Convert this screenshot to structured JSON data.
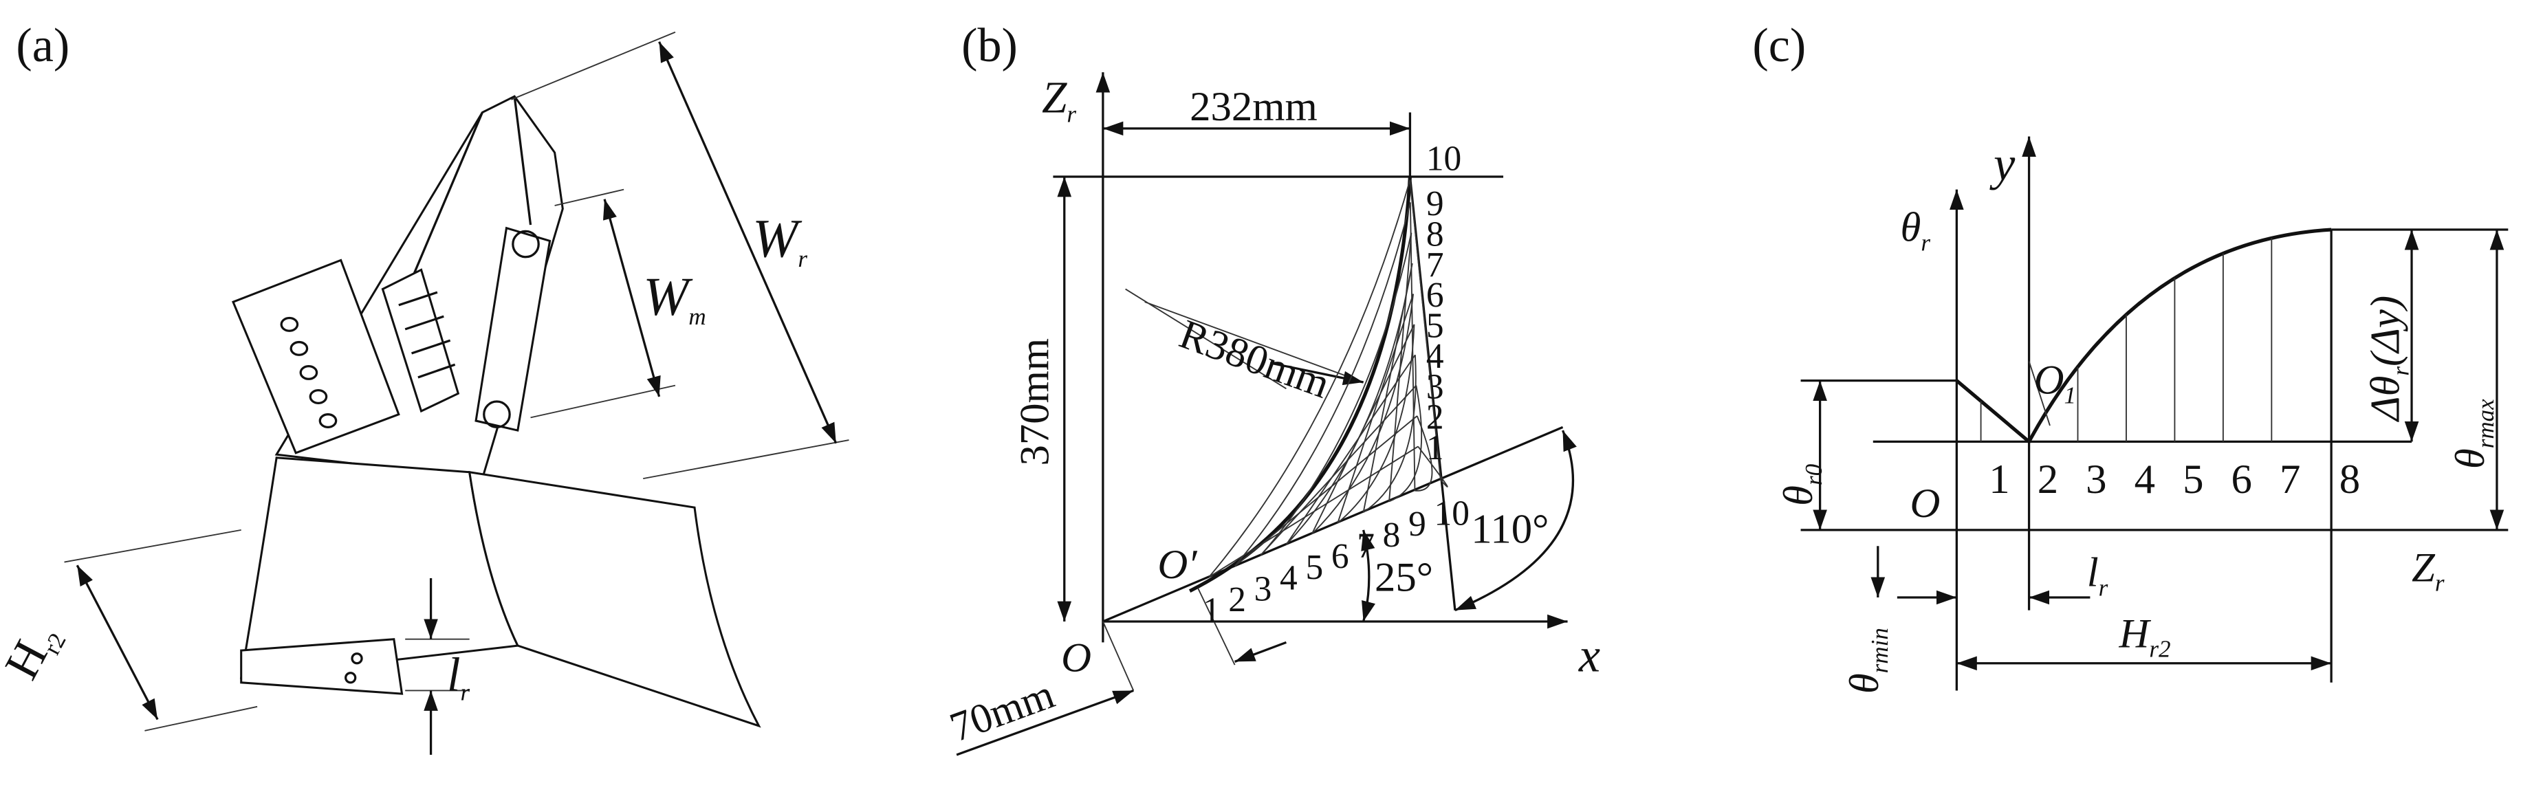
{
  "panels": [
    {
      "label": "(a)",
      "dim_wr": {
        "base": "W",
        "sub": "r"
      },
      "dim_wm": {
        "base": "W",
        "sub": "m"
      },
      "dim_hr2": {
        "base": "H",
        "sub": "r2"
      },
      "dim_lr": {
        "base": "l",
        "sub": "r"
      }
    },
    {
      "label": "(b)",
      "axis_z": {
        "base": "Z",
        "sub": "r"
      },
      "axis_x": "x",
      "origin": "O",
      "origin_prime": "O′",
      "width": "232mm",
      "height": "370mm",
      "radius": "R380mm",
      "offset": "70mm",
      "angle_large": "110°",
      "angle_small": "25°",
      "curve_points": [
        "1",
        "2",
        "3",
        "4",
        "5",
        "6",
        "7",
        "8",
        "9",
        "10"
      ],
      "base_points": [
        "1",
        "2",
        "3",
        "4",
        "5",
        "6",
        "7",
        "8",
        "9",
        "10"
      ]
    },
    {
      "label": "(c)",
      "axis_y": "y",
      "axis_theta": {
        "base": "θ",
        "sub": "r"
      },
      "axis_z": {
        "base": "Z",
        "sub": "r"
      },
      "origin": "O",
      "point_o1": {
        "base": "O",
        "sub": "1"
      },
      "theta_r0": {
        "base": "θ",
        "sub": "r0"
      },
      "theta_min": {
        "base": "θ",
        "sub": "rmin"
      },
      "theta_max": {
        "base": "θ",
        "sub": "rmax"
      },
      "delta": {
        "base": "Δθ",
        "sub": "r",
        "tail": "(Δy)"
      },
      "dim_lr": {
        "base": "l",
        "sub": "r"
      },
      "dim_hr2": {
        "base": "H",
        "sub": "r2"
      },
      "stations": [
        "1",
        "2",
        "3",
        "4",
        "5",
        "6",
        "7",
        "8"
      ]
    }
  ]
}
